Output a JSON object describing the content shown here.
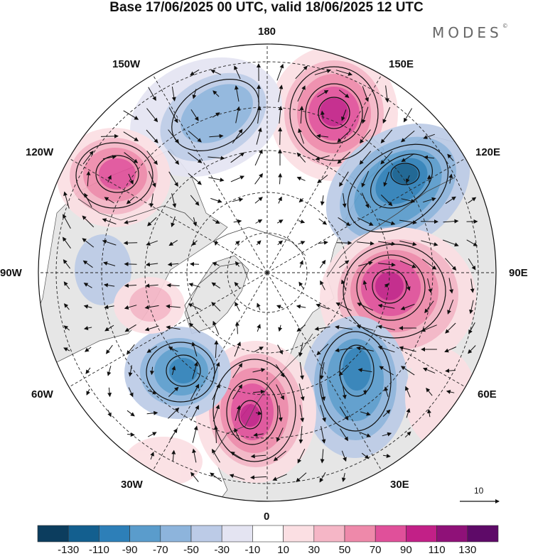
{
  "title": "Base 17/06/2025 00 UTC, valid 18/06/2025 12 UTC",
  "brand": "MODES",
  "brand_mark": "©",
  "longitude_labels": {
    "lon_180": "180",
    "lon_150e": "150E",
    "lon_120e": "120E",
    "lon_90e": "90E",
    "lon_60e": "60E",
    "lon_30e": "30E",
    "lon_0": "0",
    "lon_30w": "30W",
    "lon_60w": "60W",
    "lon_90w": "90W",
    "lon_120w": "120W",
    "lon_150w": "150W"
  },
  "vector_scale": {
    "label": "10"
  },
  "colorbar": {
    "ticks": [
      "-130",
      "-110",
      "-90",
      "-70",
      "-50",
      "-30",
      "-10",
      "10",
      "30",
      "50",
      "70",
      "90",
      "110",
      "130"
    ],
    "colors": [
      "#0c3d5e",
      "#135f8f",
      "#2d7fb8",
      "#5a9ccc",
      "#8db4dc",
      "#bccbe7",
      "#e4e4f2",
      "#ffffff",
      "#fbdfe3",
      "#f5b6c6",
      "#ee89aa",
      "#e0509a",
      "#c22087",
      "#8f1178",
      "#5e0a68"
    ]
  },
  "colors": {
    "background": "#ffffff",
    "map_land": "#e8e8e8",
    "contour": "#111111"
  },
  "map": {
    "projection": "polar-stereographic",
    "pole": "north",
    "anomalies": [
      {
        "name": "pacific-ridge",
        "lon": 160,
        "lat": 55,
        "value": 110
      },
      {
        "name": "east-siberia-trough",
        "lon": 115,
        "lat": 55,
        "value": -110
      },
      {
        "name": "siberia-ridge",
        "lon": 85,
        "lat": 52,
        "value": 110
      },
      {
        "name": "west-siberia-trough",
        "lon": 45,
        "lat": 55,
        "value": -90
      },
      {
        "name": "europe-ridge",
        "lon": 5,
        "lat": 52,
        "value": 110
      },
      {
        "name": "north-atlantic-trough",
        "lon": -38,
        "lat": 50,
        "value": -110
      },
      {
        "name": "alaska-trough",
        "lon": -160,
        "lat": 55,
        "value": -70
      },
      {
        "name": "canada-ridge",
        "lon": -128,
        "lat": 48,
        "value": 90
      }
    ]
  }
}
